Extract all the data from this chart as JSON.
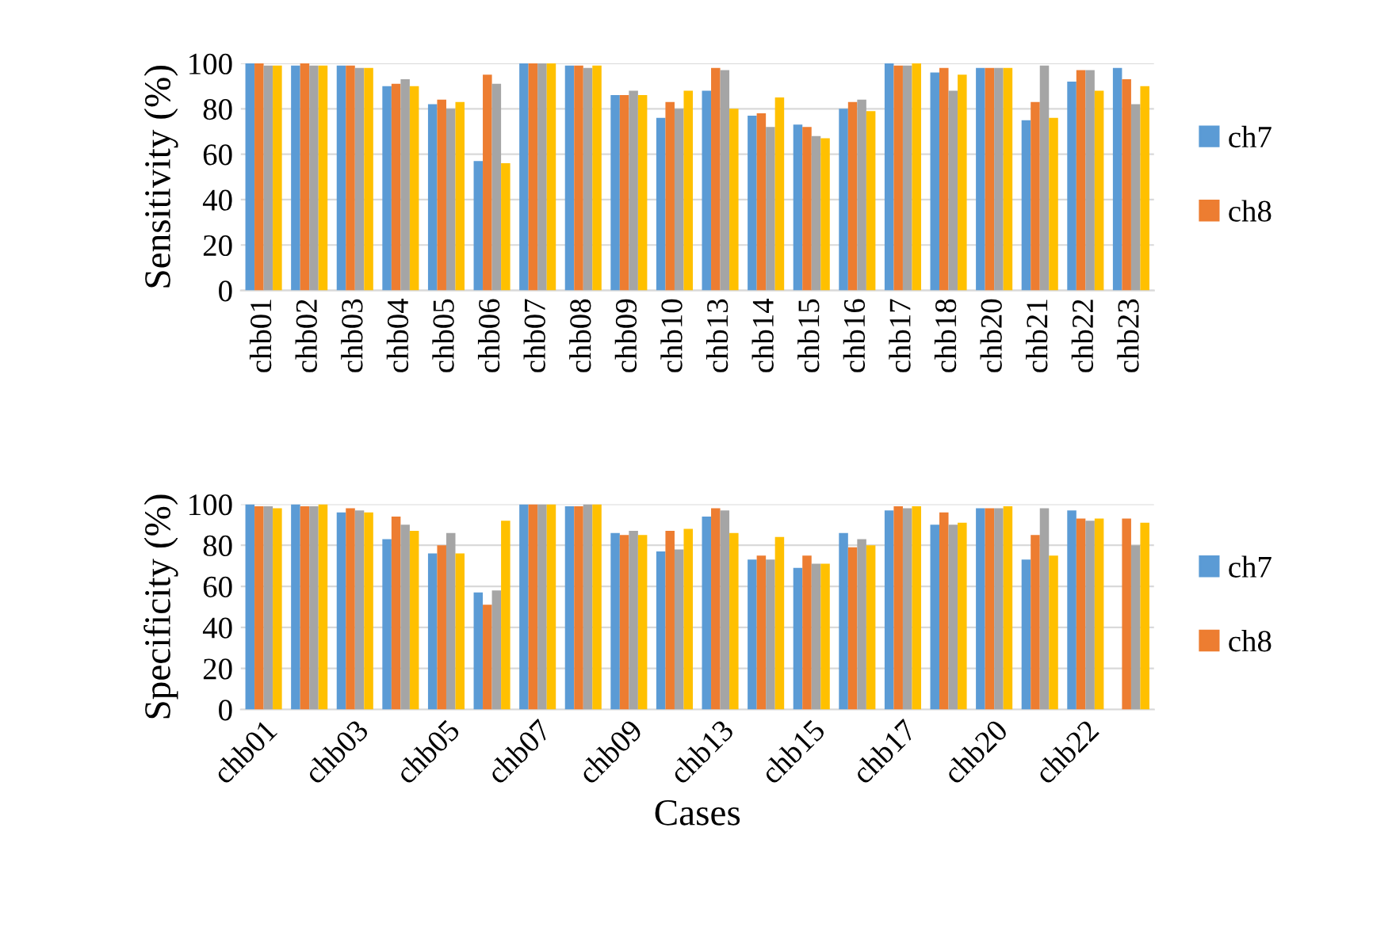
{
  "chart_data": [
    {
      "type": "bar",
      "ylabel": "Sensitivity (%)",
      "categories": [
        "chb01",
        "chb02",
        "chb03",
        "chb04",
        "chb05",
        "chb06",
        "chb07",
        "chb08",
        "chb09",
        "chb10",
        "chb13",
        "chb14",
        "chb15",
        "chb16",
        "chb17",
        "chb18",
        "chb20",
        "chb21",
        "chb22",
        "chb23"
      ],
      "series": [
        {
          "name": "ch7",
          "color": "#5b9bd5",
          "values": [
            100,
            99,
            99,
            90,
            82,
            57,
            100,
            99,
            86,
            76,
            88,
            77,
            73,
            80,
            100,
            96,
            98,
            75,
            92,
            98
          ]
        },
        {
          "name": "ch8",
          "color": "#ed7d31",
          "values": [
            100,
            100,
            99,
            91,
            84,
            95,
            100,
            99,
            86,
            83,
            98,
            78,
            72,
            83,
            99,
            98,
            98,
            83,
            97,
            93
          ]
        },
        {
          "color": "#a5a5a5",
          "values": [
            99,
            99,
            98,
            93,
            80,
            91,
            100,
            98,
            88,
            80,
            97,
            72,
            68,
            84,
            99,
            88,
            98,
            99,
            97,
            82
          ]
        },
        {
          "color": "#ffc000",
          "values": [
            99,
            99,
            98,
            90,
            83,
            56,
            100,
            99,
            86,
            88,
            80,
            85,
            67,
            79,
            100,
            95,
            98,
            76,
            88,
            90
          ]
        }
      ],
      "ylim": [
        0,
        100
      ],
      "yticks": [
        0,
        20,
        40,
        60,
        80,
        100
      ],
      "grid": "y",
      "legend": "right"
    },
    {
      "type": "bar",
      "ylabel": "Specificity (%)",
      "xlabel": "Cases",
      "categories": [
        "chb01",
        null,
        "chb03",
        null,
        "chb05",
        null,
        "chb07",
        null,
        "chb09",
        null,
        "chb13",
        null,
        "chb15",
        null,
        "chb17",
        null,
        "chb20",
        null,
        "chb22",
        null
      ],
      "series": [
        {
          "name": "ch7",
          "color": "#5b9bd5",
          "values": [
            100,
            100,
            96,
            83,
            76,
            57,
            100,
            99,
            86,
            77,
            94,
            73,
            69,
            86,
            97,
            90,
            98,
            73,
            97,
            0
          ]
        },
        {
          "name": "ch8",
          "color": "#ed7d31",
          "values": [
            99,
            99,
            98,
            94,
            80,
            51,
            100,
            99,
            85,
            87,
            98,
            75,
            75,
            79,
            99,
            96,
            98,
            85,
            93,
            93
          ]
        },
        {
          "color": "#a5a5a5",
          "values": [
            99,
            99,
            97,
            90,
            86,
            58,
            100,
            100,
            87,
            78,
            97,
            73,
            71,
            83,
            98,
            90,
            98,
            98,
            92,
            80
          ]
        },
        {
          "color": "#ffc000",
          "values": [
            98,
            100,
            96,
            87,
            76,
            92,
            100,
            100,
            85,
            88,
            86,
            84,
            71,
            80,
            99,
            91,
            99,
            75,
            93,
            91
          ]
        }
      ],
      "ylim": [
        0,
        100
      ],
      "yticks": [
        0,
        20,
        40,
        60,
        80,
        100
      ],
      "grid": "y",
      "legend": "right"
    }
  ]
}
